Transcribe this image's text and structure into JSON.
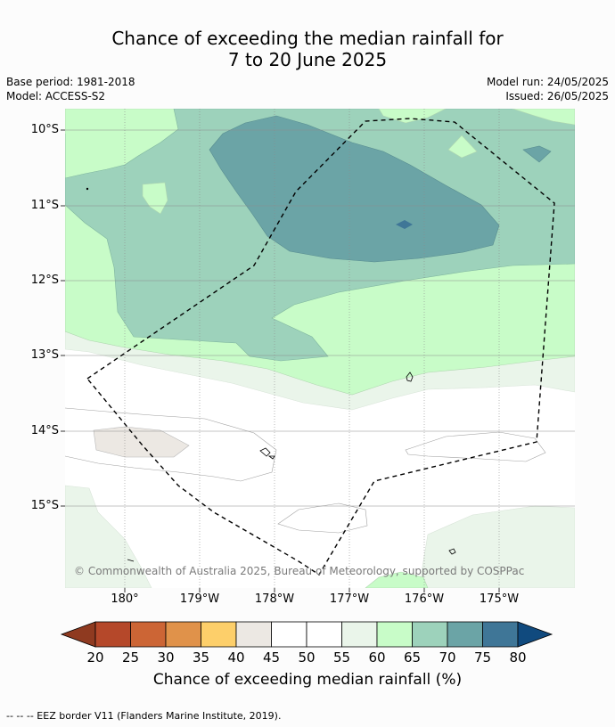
{
  "title_line1": "Chance of exceeding the median rainfall for",
  "title_line2": "7 to 20 June 2025",
  "meta": {
    "base_period": "Base period: 1981-2018",
    "model": "Model: ACCESS-S2",
    "model_run": "Model run: 24/05/2025",
    "issued": "Issued: 26/05/2025"
  },
  "axes": {
    "lat_labels": [
      "10°S",
      "11°S",
      "12°S",
      "13°S",
      "14°S",
      "15°S"
    ],
    "lon_labels": [
      "180°",
      "179°W",
      "178°W",
      "177°W",
      "176°W",
      "175°W"
    ]
  },
  "copyright": "© Commonwealth of Australia 2025, Bureau of Meteorology, supported by COSPPac",
  "colorbar": {
    "ticks": [
      "20",
      "25",
      "30",
      "35",
      "40",
      "45",
      "50",
      "55",
      "60",
      "65",
      "70",
      "75",
      "80"
    ],
    "colors": [
      "#8f3a20",
      "#b5482a",
      "#cc6535",
      "#e0924a",
      "#fdcf6a",
      "#ece8e3",
      "#ffffff",
      "#ffffff",
      "#eaf5ea",
      "#c8fcc8",
      "#9dd2bb",
      "#6ba4a6",
      "#3f7697",
      "#104a7e"
    ],
    "label": "Chance of exceeding median rainfall (%)"
  },
  "footnote": "--  --  -- EEZ border V11 (Flanders Marine Institute, 2019)."
}
